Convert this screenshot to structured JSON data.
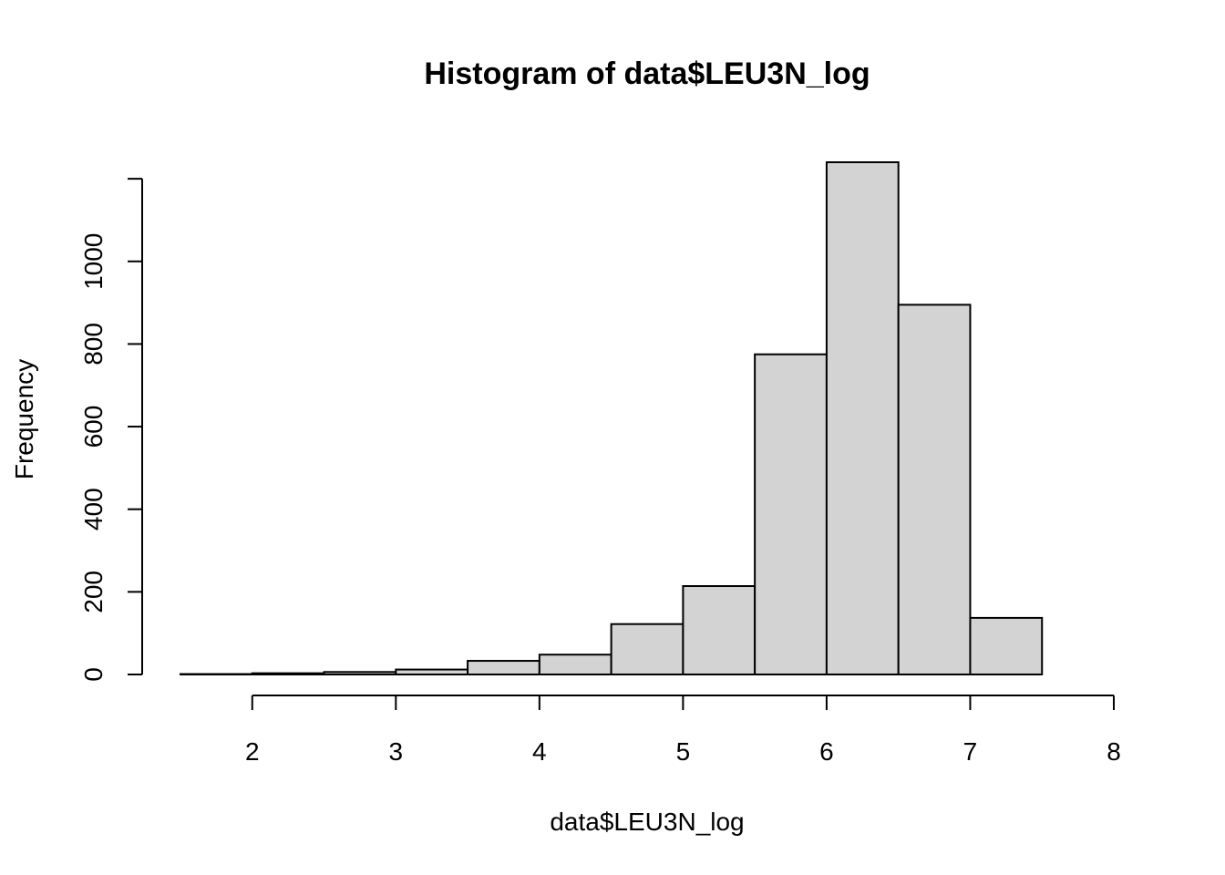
{
  "chart_data": {
    "type": "bar",
    "title": "Histogram of data$LEU3N_log",
    "xlabel": "data$LEU3N_log",
    "ylabel": "Frequency",
    "bins": [
      {
        "start": 1.5,
        "end": 2.0,
        "count": 1
      },
      {
        "start": 2.0,
        "end": 2.5,
        "count": 3
      },
      {
        "start": 2.5,
        "end": 3.0,
        "count": 6
      },
      {
        "start": 3.0,
        "end": 3.5,
        "count": 12
      },
      {
        "start": 3.5,
        "end": 4.0,
        "count": 33
      },
      {
        "start": 4.0,
        "end": 4.5,
        "count": 48
      },
      {
        "start": 4.5,
        "end": 5.0,
        "count": 122
      },
      {
        "start": 5.0,
        "end": 5.5,
        "count": 214
      },
      {
        "start": 5.5,
        "end": 6.0,
        "count": 775
      },
      {
        "start": 6.0,
        "end": 6.5,
        "count": 1240
      },
      {
        "start": 6.5,
        "end": 7.0,
        "count": 895
      },
      {
        "start": 7.0,
        "end": 7.5,
        "count": 137
      },
      {
        "start": 7.5,
        "end": 8.0,
        "count": 0
      }
    ],
    "xticks": [
      2,
      3,
      4,
      5,
      6,
      7,
      8
    ],
    "yticks": [
      0,
      200,
      400,
      600,
      800,
      1000
    ],
    "xlim": [
      1.5,
      8.0
    ],
    "ylim": [
      0,
      1240
    ],
    "grid": false,
    "legend": "none",
    "bar_color": "#d3d3d3",
    "edge_color": "#000000"
  }
}
